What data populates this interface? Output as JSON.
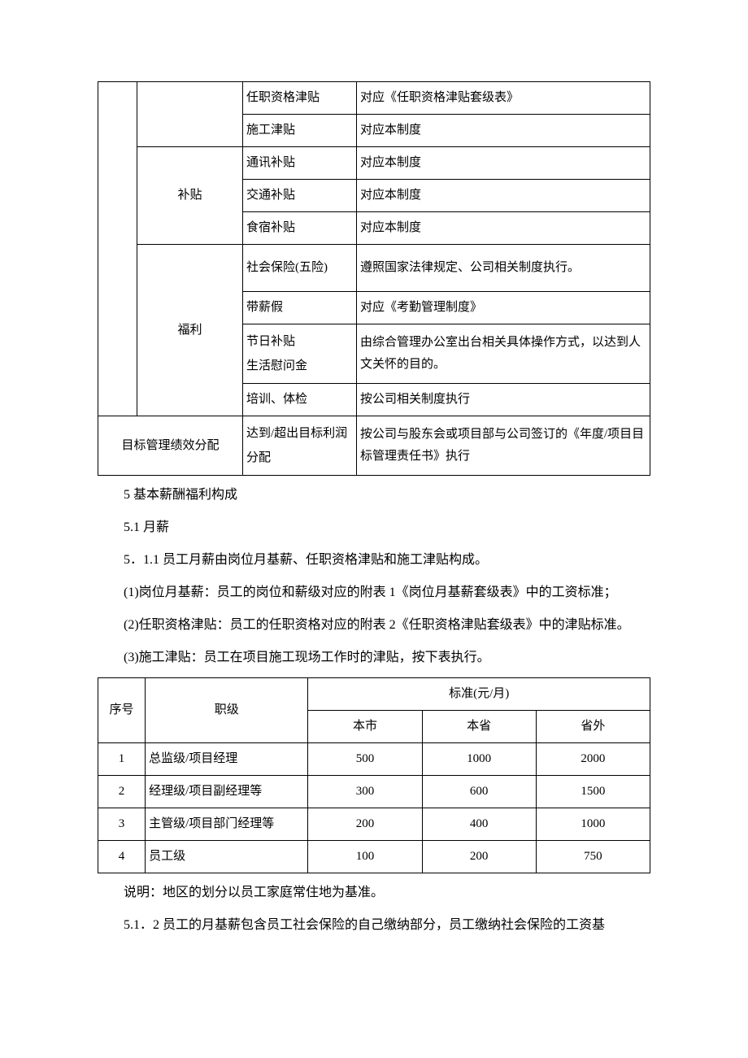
{
  "table1": {
    "rows": [
      {
        "cat1_blank_rowspan": 2,
        "cat2_blank_rowspan": null,
        "item": "任职资格津贴",
        "desc": "对应《任职资格津贴套级表》"
      },
      {
        "item": "施工津贴",
        "desc": "对应本制度"
      },
      {
        "cat2": "补贴",
        "cat2_rowspan": 3,
        "item": "通讯补贴",
        "desc": "对应本制度"
      },
      {
        "item": "交通补贴",
        "desc": "对应本制度"
      },
      {
        "item": "食宿补贴",
        "desc": "对应本制度"
      },
      {
        "cat2": "福利",
        "cat2_rowspan": 4,
        "item": "社会保险(五险)",
        "desc": "遵照国家法律规定、公司相关制度执行。",
        "tall": true
      },
      {
        "item": "带薪假",
        "desc": "对应《考勤管理制度》"
      },
      {
        "item": "节日补贴\n生活慰问金",
        "desc": "由综合管理办公室出台相关具体操作方式，以达到人文关怀的目的。"
      },
      {
        "item": "培训、体检",
        "desc": "按公司相关制度执行"
      },
      {
        "colspan_label": "目标管理绩效分配",
        "item": "达到/超出目标利润分配",
        "desc": "按公司与股东会或项目部与公司签订的《年度/项目目标管理责任书》执行"
      }
    ]
  },
  "section5": {
    "heading": "5 基本薪酬福利构成",
    "s51": "5.1 月薪",
    "s511": "5．1.1 员工月薪由岗位月基薪、任职资格津贴和施工津贴构成。",
    "p1": "(1)岗位月基薪：员工的岗位和薪级对应的附表 1《岗位月基薪套级表》中的工资标准；",
    "p2": "(2)任职资格津贴：员工的任职资格对应的附表 2《任职资格津贴套级表》中的津贴标准。",
    "p3": "(3)施工津贴：员工在项目施工现场工作时的津贴，按下表执行。"
  },
  "table2": {
    "headers": {
      "num": "序号",
      "job": "职级",
      "std": "标准(元/月)",
      "city": "本市",
      "province": "本省",
      "outside": "省外"
    },
    "rows": [
      {
        "num": "1",
        "job": "总监级/项目经理",
        "city": "500",
        "province": "1000",
        "outside": "2000"
      },
      {
        "num": "2",
        "job": "经理级/项目副经理等",
        "city": "300",
        "province": "600",
        "outside": "1500"
      },
      {
        "num": "3",
        "job": "主管级/项目部门经理等",
        "city": "200",
        "province": "400",
        "outside": "1000"
      },
      {
        "num": "4",
        "job": "员工级",
        "city": "100",
        "province": "200",
        "outside": "750"
      }
    ]
  },
  "note": "说明：地区的划分以员工家庭常住地为基准。",
  "s512": "5.1．2 员工的月基薪包含员工社会保险的自己缴纳部分，员工缴纳社会保险的工资基"
}
